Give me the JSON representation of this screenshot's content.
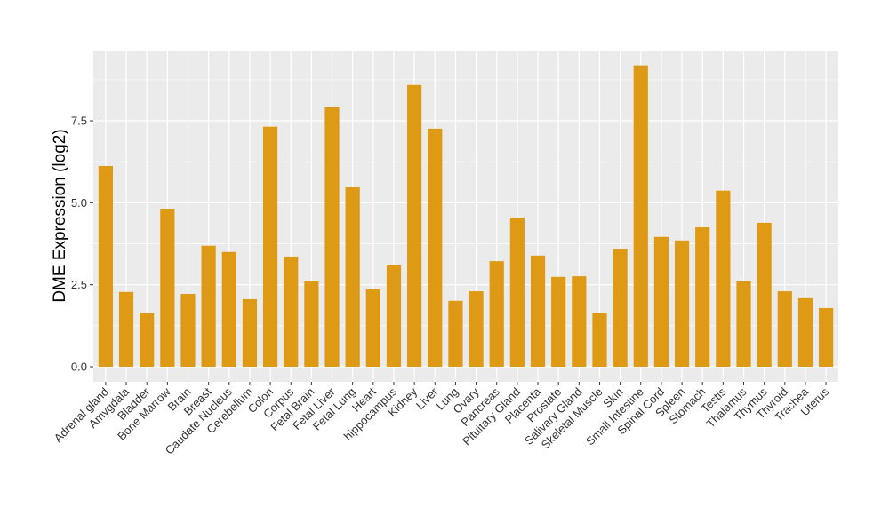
{
  "chart_data": {
    "type": "bar",
    "title": "",
    "xlabel": "",
    "ylabel": "DME Expression (log2)",
    "ylim": [
      -0.46,
      9.64
    ],
    "yticks": [
      "0.0",
      "2.5",
      "5.0",
      "7.5"
    ],
    "ytick_values": [
      0,
      2.5,
      5,
      7.5
    ],
    "grid": true,
    "bar_color": "#DE9A14",
    "panel_color": "#EBEBEB",
    "categories": [
      "Adrenal gland",
      "Amygdala",
      "Bladder",
      "Bone Marrow",
      "Brain",
      "Breast",
      "Caudate Nucleus",
      "Cerebellum",
      "Colon",
      "Corpus",
      "Fetal Brain",
      "Fetal Liver",
      "Fetal Lung",
      "Heart",
      "hippocampus",
      "Kidney",
      "Liver",
      "Lung",
      "Ovary",
      "Pancreas",
      "Pituitary Gland",
      "Placenta",
      "Prostate",
      "Salivary Gland",
      "Skeletal Muscle",
      "Skin",
      "Small Intestine",
      "Spinal Cord",
      "Spleen",
      "Stomach",
      "Testis",
      "Thalamus",
      "Thymus",
      "Thyroid",
      "Trachea",
      "Uterus"
    ],
    "values": [
      6.12,
      2.28,
      1.65,
      4.82,
      2.22,
      3.69,
      3.5,
      2.06,
      7.32,
      3.36,
      2.6,
      7.91,
      5.47,
      2.36,
      3.09,
      8.59,
      7.26,
      2.01,
      2.3,
      3.22,
      4.55,
      3.39,
      2.74,
      2.76,
      1.65,
      3.6,
      9.19,
      3.96,
      3.85,
      4.25,
      5.37,
      2.6,
      4.39,
      2.3,
      2.09,
      1.79
    ]
  }
}
